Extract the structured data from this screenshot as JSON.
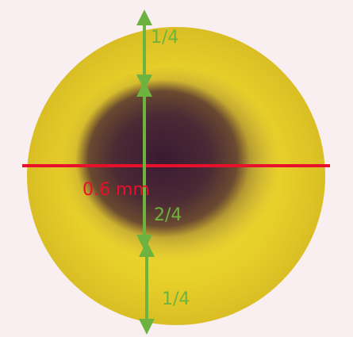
{
  "annotations": {
    "scale_label": "0.6 mm",
    "upper_fraction": "1/4",
    "middle_fraction": "2/4",
    "lower_fraction": "1/4"
  },
  "colors": {
    "background": "#f9eef0",
    "outer_ring": "#e9d12a",
    "dark_core": "#3f1f34",
    "scale_line": "#e8102a",
    "arrows": "#6db33f"
  }
}
